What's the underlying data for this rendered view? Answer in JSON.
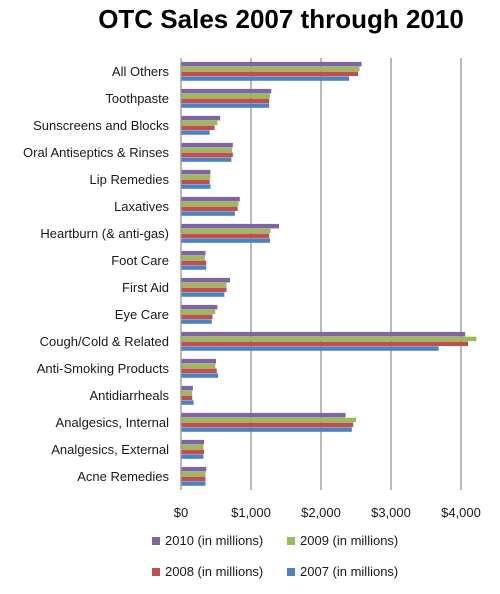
{
  "chart_data": {
    "type": "bar",
    "orientation": "horizontal",
    "title": "OTC Sales 2007 through 2010",
    "xlabel": "",
    "ylabel": "",
    "xlim": [
      0,
      4200
    ],
    "xticks": [
      0,
      1000,
      2000,
      3000,
      4000
    ],
    "xtick_labels": [
      "$0",
      "$1,000",
      "$2,000",
      "$3,000",
      "$4,000"
    ],
    "grid": "vertical major gridlines",
    "legend_position": "bottom",
    "categories": [
      "All Others",
      "Toothpaste",
      "Sunscreens and Blocks",
      "Oral Antiseptics & Rinses",
      "Lip Remedies",
      "Laxatives",
      "Heartburn (& anti-gas)",
      "Foot Care",
      "First Aid",
      "Eye Care",
      "Cough/Cold & Related",
      "Anti-Smoking Products",
      "Antidiarrheals",
      "Analgesics, Internal",
      "Analgesics, External",
      "Acne Remedies"
    ],
    "series": [
      {
        "name": "2010 (in millions)",
        "color": "#8064a2",
        "values": [
          2580,
          1290,
          560,
          740,
          420,
          840,
          1400,
          350,
          700,
          520,
          4060,
          500,
          170,
          2350,
          330,
          360
        ]
      },
      {
        "name": "2009 (in millions)",
        "color": "#9bbb59",
        "values": [
          2550,
          1270,
          520,
          730,
          420,
          820,
          1280,
          340,
          650,
          490,
          4220,
          490,
          160,
          2500,
          320,
          350
        ]
      },
      {
        "name": "2008 (in millions)",
        "color": "#c0504d",
        "values": [
          2530,
          1260,
          480,
          740,
          410,
          810,
          1260,
          360,
          650,
          450,
          4100,
          510,
          160,
          2460,
          330,
          350
        ]
      },
      {
        "name": "2007 (in millions)",
        "color": "#4f81bd",
        "values": [
          2400,
          1260,
          410,
          720,
          420,
          770,
          1270,
          360,
          620,
          440,
          3680,
          530,
          180,
          2440,
          320,
          350
        ]
      }
    ]
  }
}
